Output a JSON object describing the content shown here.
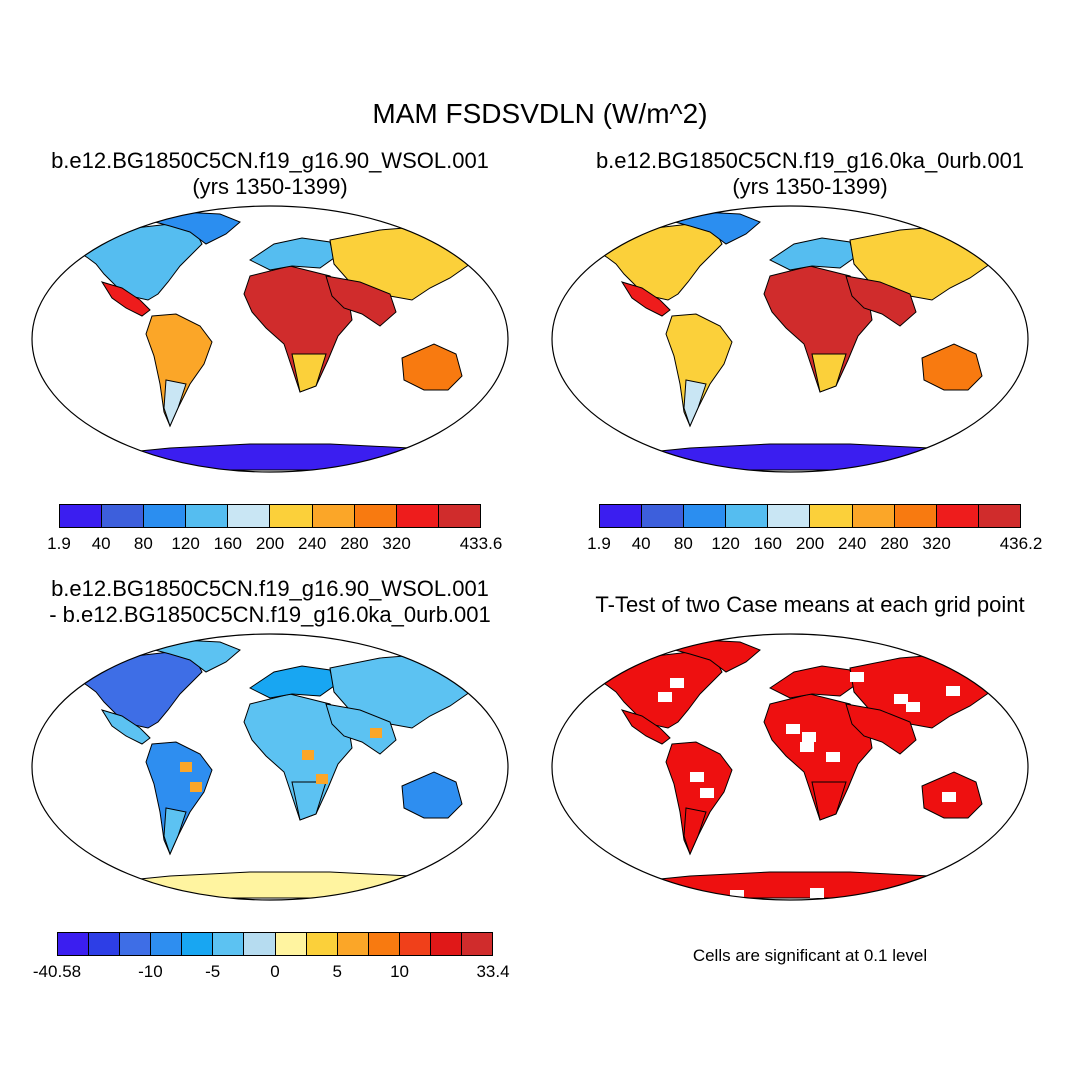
{
  "title": "MAM FSDSVDLN (W/m^2)",
  "panels": {
    "p1": {
      "title_line1": "b.e12.BG1850C5CN.f19_g16.90_WSOL.001",
      "title_line2": "(yrs 1350-1399)",
      "colorbar": {
        "colors": [
          "#3b1ef0",
          "#3d5fdc",
          "#2b8ef0",
          "#55bdf0",
          "#c9e6f4",
          "#fbd03a",
          "#fba628",
          "#f87a10",
          "#ee1c1c",
          "#d02c2c"
        ],
        "labels": [
          "1.9",
          "40",
          "80",
          "120",
          "160",
          "200",
          "240",
          "280",
          "320",
          "433.6"
        ]
      }
    },
    "p2": {
      "title_line1": "b.e12.BG1850C5CN.f19_g16.0ka_0urb.001",
      "title_line2": "(yrs 1350-1399)",
      "colorbar": {
        "colors": [
          "#3b1ef0",
          "#3d5fdc",
          "#2b8ef0",
          "#55bdf0",
          "#c9e6f4",
          "#fbd03a",
          "#fba628",
          "#f87a10",
          "#ee1c1c",
          "#d02c2c"
        ],
        "labels": [
          "1.9",
          "40",
          "80",
          "120",
          "160",
          "200",
          "240",
          "280",
          "320",
          "436.2"
        ]
      }
    },
    "p3": {
      "title_line1": "b.e12.BG1850C5CN.f19_g16.90_WSOL.001",
      "title_line2": "- b.e12.BG1850C5CN.f19_g16.0ka_0urb.001",
      "colorbar": {
        "colors": [
          "#3b1ef0",
          "#2d3ee6",
          "#3e6ee6",
          "#2e8ef0",
          "#18a6f2",
          "#5cc2f2",
          "#b6dcf0",
          "#fff4a0",
          "#fbd03a",
          "#fba628",
          "#f87a10",
          "#f0401a",
          "#e01818",
          "#d02c2c"
        ],
        "labels": [
          "-40.58",
          "-10",
          "-5",
          "0",
          "5",
          "10",
          "33.4"
        ]
      }
    },
    "p4": {
      "title_line1": "T-Test of two Case means at each grid point",
      "note": "Cells are significant at 0.1 level",
      "fill_color": "#ee1010"
    }
  },
  "land_colors": {
    "north_america": "#55bdf0",
    "arctic_islands": "#2b8ef0",
    "mexico": "#ee1c1c",
    "south_america": "#fba628",
    "south_america_south": "#c9e6f4",
    "africa": "#d02c2c",
    "africa_south": "#fbd03a",
    "europe": "#55bdf0",
    "asia": "#fbd03a",
    "middle_east_india": "#d02c2c",
    "australia": "#f87a10",
    "antarctica": "#3b1ef0"
  },
  "diff_colors": {
    "north_america": "#3e6ee6",
    "south_america": "#2e8ef0",
    "africa": "#5cc2f2",
    "europe": "#18a6f2",
    "asia": "#5cc2f2",
    "australia": "#2e8ef0",
    "antarctica": "#fff4a0",
    "hotspot": "#fba628"
  }
}
